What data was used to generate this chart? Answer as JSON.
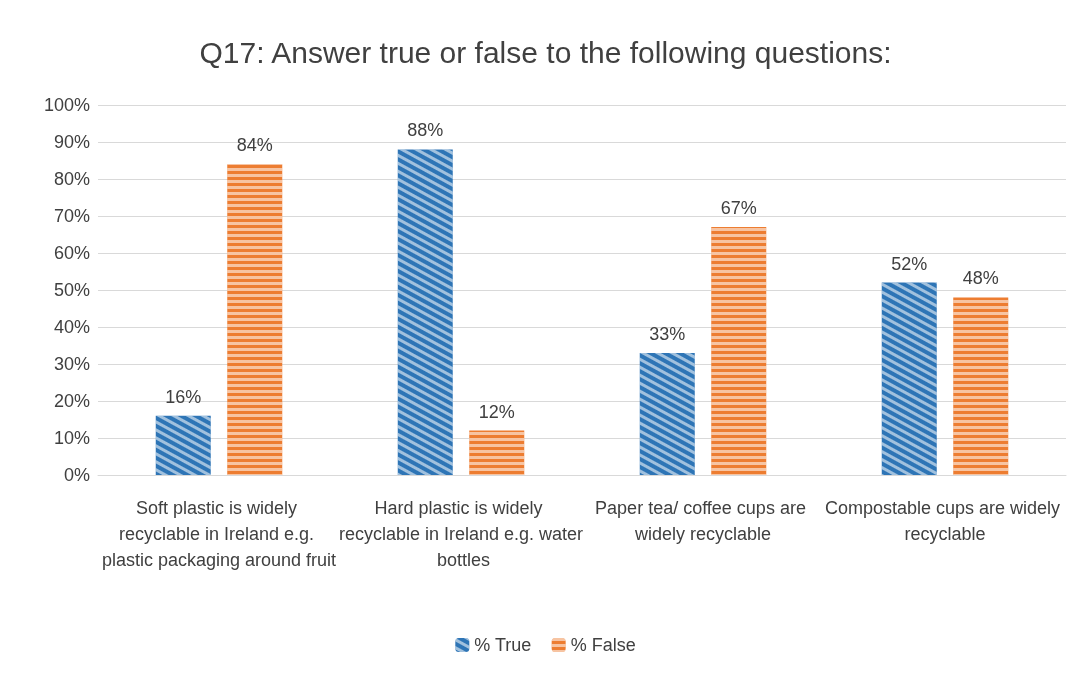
{
  "chart_data": {
    "type": "bar",
    "title": "Q17: Answer true or false to the following questions:",
    "categories": [
      "Soft plastic is widely recyclable in Ireland e.g. plastic packaging around fruit",
      "Hard plastic is widely recyclable in Ireland e.g. water bottles",
      "Paper tea/ coffee cups are widely recyclable",
      "Compostable cups are widely recyclable"
    ],
    "series": [
      {
        "name": "% True",
        "color": "#2e75b6",
        "values": [
          16,
          88,
          33,
          52
        ],
        "value_labels": [
          "16%",
          "88%",
          "33%",
          "52%"
        ]
      },
      {
        "name": "% False",
        "color": "#ed7d31",
        "values": [
          84,
          12,
          67,
          48
        ],
        "value_labels": [
          "84%",
          "12%",
          "67%",
          "48%"
        ]
      }
    ],
    "ylim": [
      0,
      100
    ],
    "yticks": [
      {
        "value": 0,
        "label": "0%"
      },
      {
        "value": 10,
        "label": "10%"
      },
      {
        "value": 20,
        "label": "20%"
      },
      {
        "value": 30,
        "label": "30%"
      },
      {
        "value": 40,
        "label": "40%"
      },
      {
        "value": 50,
        "label": "50%"
      },
      {
        "value": 60,
        "label": "60%"
      },
      {
        "value": 70,
        "label": "70%"
      },
      {
        "value": 80,
        "label": "80%"
      },
      {
        "value": 90,
        "label": "90%"
      },
      {
        "value": 100,
        "label": "100%"
      }
    ],
    "grid": "y",
    "legend": "bottom"
  }
}
